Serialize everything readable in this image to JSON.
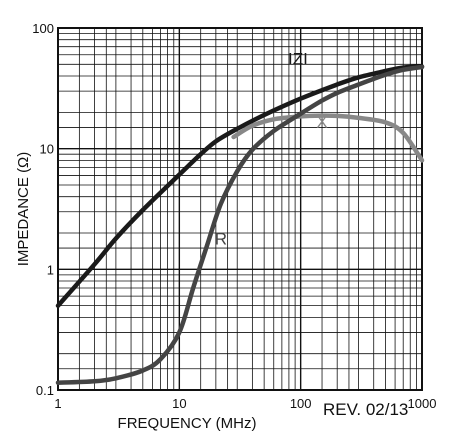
{
  "chart_data": {
    "type": "line",
    "title": "",
    "xlabel": "FREQUENCY (MHz)",
    "ylabel": "IMPEDANCE (Ω)",
    "x_scale": "log",
    "y_scale": "log",
    "xlim": [
      1,
      1000
    ],
    "ylim": [
      0.1,
      100
    ],
    "grid": true,
    "x_ticks": [
      {
        "value": 1,
        "label": "1"
      },
      {
        "value": 10,
        "label": "10"
      },
      {
        "value": 100,
        "label": "100"
      },
      {
        "value": 1000,
        "label": "1000"
      }
    ],
    "y_ticks": [
      {
        "value": 0.1,
        "label": "0.1"
      },
      {
        "value": 1,
        "label": "1"
      },
      {
        "value": 10,
        "label": "10"
      },
      {
        "value": 100,
        "label": "100"
      }
    ],
    "series": [
      {
        "name": "IZI",
        "color": "#1a1a1a",
        "label_at": [
          95,
          50
        ],
        "points": [
          [
            1,
            0.5
          ],
          [
            2,
            1.1
          ],
          [
            3,
            1.8
          ],
          [
            5,
            3.1
          ],
          [
            10,
            6.1
          ],
          [
            15,
            9
          ],
          [
            20,
            11.5
          ],
          [
            30,
            14.6
          ],
          [
            50,
            19
          ],
          [
            100,
            26
          ],
          [
            200,
            34
          ],
          [
            300,
            39
          ],
          [
            500,
            44
          ],
          [
            700,
            47
          ],
          [
            1000,
            48
          ]
        ]
      },
      {
        "name": "X",
        "color": "#888888",
        "label_at": [
          150,
          15
        ],
        "points": [
          [
            28,
            12.5
          ],
          [
            40,
            15.5
          ],
          [
            60,
            17.5
          ],
          [
            100,
            18.5
          ],
          [
            150,
            18.8
          ],
          [
            200,
            18.7
          ],
          [
            300,
            18
          ],
          [
            500,
            16.5
          ],
          [
            700,
            13.5
          ],
          [
            1000,
            8
          ]
        ]
      },
      {
        "name": "R",
        "color": "#444444",
        "label_at": [
          22,
          1.6
        ],
        "points": [
          [
            1,
            0.115
          ],
          [
            2,
            0.118
          ],
          [
            3,
            0.125
          ],
          [
            5,
            0.145
          ],
          [
            7,
            0.18
          ],
          [
            10,
            0.3
          ],
          [
            13,
            0.7
          ],
          [
            17,
            1.6
          ],
          [
            22,
            3.5
          ],
          [
            30,
            6.5
          ],
          [
            40,
            9.8
          ],
          [
            60,
            14
          ],
          [
            100,
            19.5
          ],
          [
            150,
            25
          ],
          [
            200,
            29
          ],
          [
            300,
            34
          ],
          [
            500,
            41
          ],
          [
            700,
            45
          ],
          [
            1000,
            47.5
          ]
        ]
      }
    ]
  },
  "watermark": {
    "rev_text": "REV. 02/13"
  }
}
